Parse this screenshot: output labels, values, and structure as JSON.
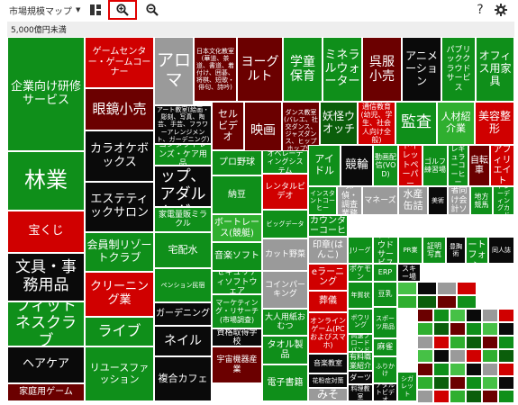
{
  "toolbar": {
    "menu_label": "市場規模マップ",
    "menu_chevron": "▼",
    "grid_icon": "grid-view-icon",
    "zoom_in_icon": "zoom-in-icon",
    "zoom_out_icon": "zoom-out-icon",
    "help_label": "?",
    "settings_icon": "gear-icon"
  },
  "subheader": "5,000億円未満",
  "colors": {
    "bright_green": "#0f8f1a",
    "medium_green": "#2faf2f",
    "light_green": "#46c146",
    "dark_green": "#0b5e0b",
    "black": "#0a0a0a",
    "dark_red": "#6b0000",
    "red": "#d00000",
    "gray": "#9a9a9a"
  },
  "tiles": [
    {
      "label": "企業向け研修サービス",
      "color": "#0f8f1a"
    },
    {
      "label": "林業",
      "color": "#0f8f1a"
    },
    {
      "label": "宝くじ",
      "color": "#d00000"
    },
    {
      "label": "文具・事務用品",
      "color": "#0a0a0a"
    },
    {
      "label": "フィットネスクラブ",
      "color": "#0f8f1a"
    },
    {
      "label": "ヘアケア",
      "color": "#0a0a0a"
    },
    {
      "label": "家庭用ゲーム",
      "color": "#6b0000"
    },
    {
      "label": "ゲームセンター・ゲームコーナー",
      "color": "#d00000"
    },
    {
      "label": "眼鏡小売",
      "color": "#6b0000"
    },
    {
      "label": "カラオケボックス",
      "color": "#0a0a0a"
    },
    {
      "label": "エステティックサロン",
      "color": "#0a0a0a"
    },
    {
      "label": "会員制リゾートクラブ",
      "color": "#0f8f1a"
    },
    {
      "label": "クリーニング業",
      "color": "#d00000"
    },
    {
      "label": "ライブ",
      "color": "#0f8f1a"
    },
    {
      "label": "リユースファッション",
      "color": "#0f8f1a"
    },
    {
      "label": "アロマ",
      "color": "#9a9a9a"
    },
    {
      "label": "日本文化教室(華道、茶道、書道、着付け、囲碁、将棋、短歌・俳句、詩吟)",
      "color": "#6b0000"
    },
    {
      "label": "ヨーグルト",
      "color": "#6b0000"
    },
    {
      "label": "学童保育",
      "color": "#0f8f1a"
    },
    {
      "label": "ミネラルウォーター",
      "color": "#0f8f1a"
    },
    {
      "label": "呉服小売",
      "color": "#6b0000"
    },
    {
      "label": "アニメーション",
      "color": "#0a0a0a"
    },
    {
      "label": "パブリッククラウドサービス",
      "color": "#0f8f1a"
    },
    {
      "label": "オフィス用家具",
      "color": "#0f8f1a"
    },
    {
      "label": "アート教室(絵画・彫刻、写真、陶芸、手芸、フラワーアレンジメント、ガーデニング)",
      "color": "#0a0a0a"
    },
    {
      "label": "セルビデオ",
      "color": "#6b0000"
    },
    {
      "label": "映画",
      "color": "#6b0000"
    },
    {
      "label": "ダンス教室(バレエ、社交ダンス、ジャズダンス、ヒップホップ他)",
      "color": "#6b0000"
    },
    {
      "label": "妖怪ウオッチ",
      "color": "#0b5e0b"
    },
    {
      "label": "通信教育(幼児、学生、社会人向け全般)",
      "color": "#d00000"
    },
    {
      "label": "監査",
      "color": "#0f8f1a"
    },
    {
      "label": "人材紹介業",
      "color": "#2faf2f"
    },
    {
      "label": "美容整形",
      "color": "#d00000"
    },
    {
      "label": "コンタクトレンズ・ケア用品",
      "color": "#0f8f1a"
    },
    {
      "label": "プロ野球",
      "color": "#0f8f1a"
    },
    {
      "label": "オペレーティングシステム",
      "color": "#0f8f1a"
    },
    {
      "label": "アイドル",
      "color": "#0f8f1a"
    },
    {
      "label": "競輪",
      "color": "#0a0a0a"
    },
    {
      "label": "動画配信(VOD)",
      "color": "#0f8f1a"
    },
    {
      "label": "トイレットペーパー",
      "color": "#d00000"
    },
    {
      "label": "ゴルフ練習場",
      "color": "#0f8f1a"
    },
    {
      "label": "レギュラーコーヒー",
      "color": "#0f8f1a"
    },
    {
      "label": "自転車",
      "color": "#6b0000"
    },
    {
      "label": "アフィリエイト",
      "color": "#d00000"
    },
    {
      "label": "アダルトショップ、アダルトグッズ",
      "color": "#0a0a0a"
    },
    {
      "label": "納豆",
      "color": "#0f8f1a"
    },
    {
      "label": "レンタルビデオ",
      "color": "#d00000"
    },
    {
      "label": "インスタントコーヒー",
      "color": "#0f8f1a"
    },
    {
      "label": "探偵・調査業務",
      "color": "#9a9a9a"
    },
    {
      "label": "マネーズ",
      "color": "#9a9a9a"
    },
    {
      "label": "水産缶詰",
      "color": "#9a9a9a"
    },
    {
      "label": "美術",
      "color": "#0a0a0a"
    },
    {
      "label": "事業者向け会計ソフト",
      "color": "#9a9a9a"
    },
    {
      "label": "地方競馬",
      "color": "#0f8f1a"
    },
    {
      "label": "トレーディングカード",
      "color": "#0f8f1a"
    },
    {
      "label": "家電量販ミラクル",
      "color": "#0f8f1a"
    },
    {
      "label": "ボートレース(競艇)",
      "color": "#2faf2f"
    },
    {
      "label": "ビッグデータ",
      "color": "#0f8f1a"
    },
    {
      "label": "コンビニカウンターコーヒー",
      "color": "#0f8f1a"
    },
    {
      "label": "宅配水",
      "color": "#0f8f1a"
    },
    {
      "label": "音楽ソフト",
      "color": "#0f8f1a"
    },
    {
      "label": "カット野菜",
      "color": "#9a9a9a"
    },
    {
      "label": "印章(はんこ)",
      "color": "#9a9a9a"
    },
    {
      "label": "Jリーグ",
      "color": "#0f8f1a"
    },
    {
      "label": "クラウドサービス",
      "color": "#0f8f1a"
    },
    {
      "label": "PR業",
      "color": "#0f8f1a"
    },
    {
      "label": "証明写真",
      "color": "#0f8f1a"
    },
    {
      "label": "豊胸術",
      "color": "#0a0a0a"
    },
    {
      "label": "スマートフォン",
      "color": "#0f8f1a"
    },
    {
      "label": "同人誌",
      "color": "#0a0a0a"
    },
    {
      "label": "ペンション民宿",
      "color": "#0f8f1a"
    },
    {
      "label": "セキュリティソフトウェア",
      "color": "#0f8f1a"
    },
    {
      "label": "コインパーキング",
      "color": "#9a9a9a"
    },
    {
      "label": "eラーニング",
      "color": "#d00000"
    },
    {
      "label": "ポケモン",
      "color": "#0f8f1a"
    },
    {
      "label": "ERP",
      "color": "#0f8f1a"
    },
    {
      "label": "スキー場",
      "color": "#0a0a0a"
    },
    {
      "label": "葬儀",
      "color": "#d00000"
    },
    {
      "label": "年賀状",
      "color": "#0f8f1a"
    },
    {
      "label": "豆乳",
      "color": "#0f8f1a"
    },
    {
      "label": "ガーデニング",
      "color": "#0a0a0a"
    },
    {
      "label": "マーケティング・リサーチ(市場調査)",
      "color": "#0f8f1a"
    },
    {
      "label": "大人用紙おむつ",
      "color": "#0f8f1a"
    },
    {
      "label": "ボウリング",
      "color": "#0f8f1a"
    },
    {
      "label": "スポーツ用品",
      "color": "#0f8f1a"
    },
    {
      "label": "ネイル",
      "color": "#0a0a0a"
    },
    {
      "label": "資格取得学校",
      "color": "#0a0a0a"
    },
    {
      "label": "タオル製品",
      "color": "#0f8f1a"
    },
    {
      "label": "オンラインゲーム(PCおよびスマホ)",
      "color": "#d00000"
    },
    {
      "label": "音楽教室",
      "color": "#0a0a0a"
    },
    {
      "label": "高速ブロードバンド",
      "color": "#0f8f1a"
    },
    {
      "label": "有料職業紹介",
      "color": "#0f8f1a"
    },
    {
      "label": "麻雀",
      "color": "#0f8f1a"
    },
    {
      "label": "複合カフェ",
      "color": "#0a0a0a"
    },
    {
      "label": "宇宙機器産業",
      "color": "#6b0000"
    },
    {
      "label": "電子書籍",
      "color": "#0f8f1a"
    },
    {
      "label": "ダーツ",
      "color": "#0a0a0a"
    },
    {
      "label": "花粉症対策",
      "color": "#0a0a0a"
    },
    {
      "label": "みそ",
      "color": "#9a9a9a"
    },
    {
      "label": "ふりかけ",
      "color": "#0f8f1a"
    },
    {
      "label": "料理教室",
      "color": "#0a0a0a"
    },
    {
      "label": "アダルトビデオ",
      "color": "#0a0a0a"
    },
    {
      "label": "シガレット",
      "color": "#0f8f1a"
    }
  ]
}
